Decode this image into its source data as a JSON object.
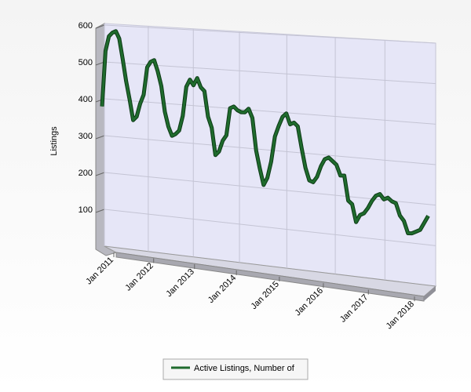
{
  "chart_data": {
    "type": "line",
    "y_label": "Listings",
    "x": [
      "Jan 2011",
      "Feb 2011",
      "Mar 2011",
      "Apr 2011",
      "May 2011",
      "Jun 2011",
      "Jul 2011",
      "Aug 2011",
      "Sep 2011",
      "Oct 2011",
      "Nov 2011",
      "Dec 2011",
      "Jan 2012",
      "Feb 2012",
      "Mar 2012",
      "Apr 2012",
      "May 2012",
      "Jun 2012",
      "Jul 2012",
      "Aug 2012",
      "Sep 2012",
      "Oct 2012",
      "Nov 2012",
      "Dec 2012",
      "Jan 2013",
      "Feb 2013",
      "Mar 2013",
      "Apr 2013",
      "May 2013",
      "Jun 2013",
      "Jul 2013",
      "Aug 2013",
      "Sep 2013",
      "Oct 2013",
      "Nov 2013",
      "Dec 2013",
      "Jan 2014",
      "Feb 2014",
      "Mar 2014",
      "Apr 2014",
      "May 2014",
      "Jun 2014",
      "Jul 2014",
      "Aug 2014",
      "Sep 2014",
      "Oct 2014",
      "Nov 2014",
      "Dec 2014",
      "Jan 2015",
      "Feb 2015",
      "Mar 2015",
      "Apr 2015",
      "May 2015",
      "Jun 2015",
      "Jul 2015",
      "Aug 2015",
      "Sep 2015",
      "Oct 2015",
      "Nov 2015",
      "Dec 2015",
      "Jan 2016",
      "Feb 2016",
      "Mar 2016",
      "Apr 2016",
      "May 2016",
      "Jun 2016",
      "Jul 2016",
      "Aug 2016",
      "Sep 2016",
      "Oct 2016",
      "Nov 2016",
      "Dec 2016",
      "Jan 2017",
      "Feb 2017",
      "Mar 2017",
      "Apr 2017",
      "May 2017",
      "Jun 2017",
      "Jul 2017",
      "Aug 2017",
      "Sep 2017",
      "Oct 2017",
      "Nov 2017",
      "Dec 2017",
      "Jan 2018",
      "Feb 2018",
      "Mar 2018",
      "Apr 2018"
    ],
    "xticks": [
      "Jan 2011",
      "Jan 2012",
      "Jan 2013",
      "Jan 2014",
      "Jan 2015",
      "Jan 2016",
      "Jan 2017",
      "Jan 2018"
    ],
    "series": [
      {
        "name": "Active Listings, Number of",
        "color": "#1f6b2d",
        "values": [
          380,
          530,
          570,
          580,
          585,
          565,
          510,
          450,
          400,
          345,
          355,
          390,
          415,
          490,
          505,
          510,
          480,
          440,
          370,
          330,
          305,
          310,
          320,
          360,
          440,
          460,
          445,
          465,
          440,
          430,
          360,
          330,
          255,
          265,
          295,
          310,
          385,
          390,
          380,
          375,
          375,
          385,
          360,
          270,
          220,
          175,
          195,
          240,
          310,
          340,
          365,
          375,
          345,
          350,
          340,
          280,
          225,
          190,
          185,
          200,
          230,
          250,
          255,
          245,
          235,
          205,
          205,
          135,
          125,
          75,
          95,
          100,
          115,
          135,
          150,
          155,
          140,
          145,
          135,
          130,
          95,
          80,
          45,
          45,
          50,
          55,
          75,
          95
        ]
      }
    ],
    "ylim": [
      0,
      600
    ],
    "yticks": [
      100,
      200,
      300,
      400,
      500,
      600
    ],
    "grid": true
  }
}
